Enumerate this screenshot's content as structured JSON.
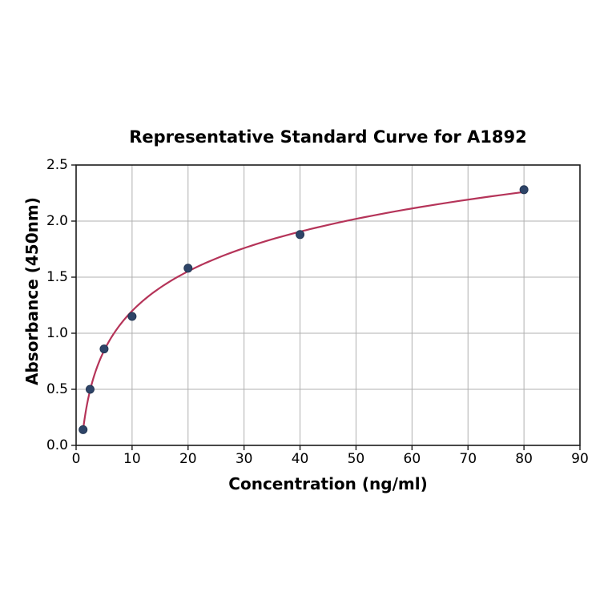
{
  "chart_data": {
    "type": "scatter",
    "title": "Representative Standard Curve for A1892",
    "xlabel": "Concentration (ng/ml)",
    "ylabel": "Absorbance (450nm)",
    "x": [
      1.25,
      2.5,
      5,
      10,
      20,
      40,
      80
    ],
    "y": [
      0.14,
      0.5,
      0.86,
      1.15,
      1.58,
      1.88,
      2.28
    ],
    "xlim": [
      0,
      90
    ],
    "ylim": [
      0,
      2.5
    ],
    "x_tick_labels": [
      "0",
      "10",
      "20",
      "30",
      "40",
      "50",
      "60",
      "70",
      "80",
      "90"
    ],
    "y_tick_labels": [
      "0.0",
      "0.5",
      "1.0",
      "1.5",
      "2.0",
      "2.5"
    ],
    "x_tick_values": [
      0,
      10,
      20,
      30,
      40,
      50,
      60,
      70,
      80,
      90
    ],
    "y_tick_values": [
      0,
      0.5,
      1.0,
      1.5,
      2.0,
      2.5
    ],
    "grid": true,
    "legend": "none",
    "trendline": {
      "type": "logarithmic"
    },
    "colors": {
      "curve": "#b53459",
      "marker_fill": "#2e4468",
      "marker_edge": "#243754",
      "grid": "#b0b0b0",
      "axis": "#1a1a1a",
      "text": "#000000",
      "background": "#ffffff"
    }
  }
}
